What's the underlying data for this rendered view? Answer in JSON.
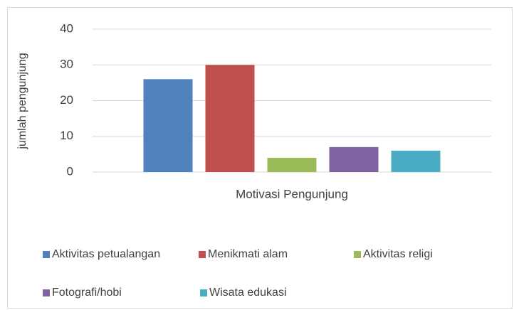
{
  "chart_data": {
    "type": "bar",
    "categories": [
      "Motivasi Pengunjung"
    ],
    "y_label": "jumlah pengunjung",
    "series": [
      {
        "name": "Aktivitas petualangan",
        "color": "#4f81bd",
        "values": [
          26
        ]
      },
      {
        "name": "Menikmati alam",
        "color": "#c0504d",
        "values": [
          30
        ]
      },
      {
        "name": "Aktivitas religi",
        "color": "#9bbb59",
        "values": [
          4
        ]
      },
      {
        "name": "Fotografi/hobi",
        "color": "#8064a2",
        "values": [
          7
        ]
      },
      {
        "name": "Wisata edukasi",
        "color": "#4bacc6",
        "values": [
          6
        ]
      }
    ],
    "ylim": [
      0,
      40
    ],
    "yticks": [
      0,
      10,
      20,
      30,
      40
    ],
    "grid": true,
    "legend": "bottom"
  }
}
